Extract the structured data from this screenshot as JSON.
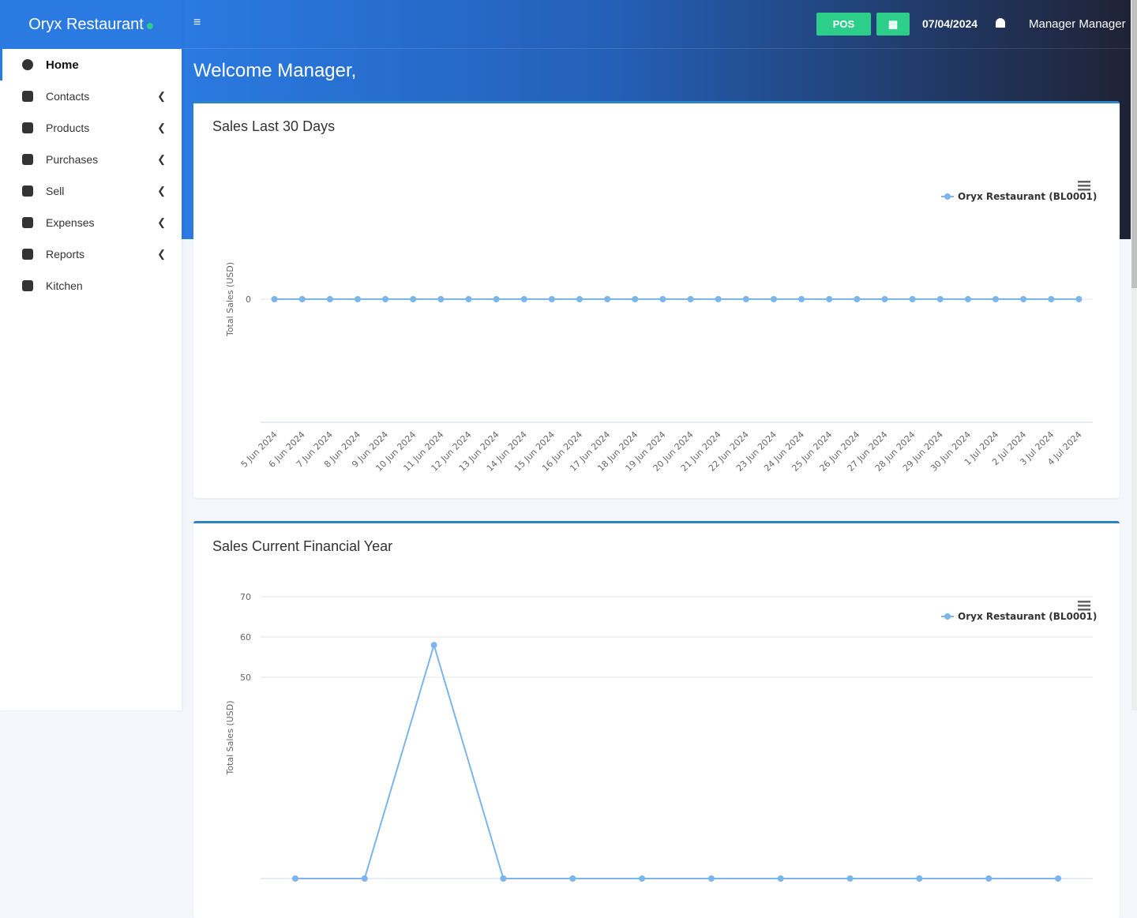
{
  "app": {
    "brand": "Oryx Restaurant"
  },
  "header": {
    "pos": "POS",
    "date": "07/04/2024",
    "user": "Manager Manager"
  },
  "sidebar": {
    "items": [
      "Home",
      "Contacts",
      "Products",
      "Purchases",
      "Sell",
      "Expenses",
      "Reports",
      "Kitchen"
    ]
  },
  "welcome": "Welcome Manager,",
  "chart_data": [
    {
      "type": "line",
      "title": "Sales Last 30 Days",
      "y_label": "Total Sales (USD)",
      "categories": [
        "5 Jun 2024",
        "6 Jun 2024",
        "7 Jun 2024",
        "8 Jun 2024",
        "9 Jun 2024",
        "10 Jun 2024",
        "11 Jun 2024",
        "12 Jun 2024",
        "13 Jun 2024",
        "14 Jun 2024",
        "15 Jun 2024",
        "16 Jun 2024",
        "17 Jun 2024",
        "18 Jun 2024",
        "19 Jun 2024",
        "20 Jun 2024",
        "21 Jun 2024",
        "22 Jun 2024",
        "23 Jun 2024",
        "24 Jun 2024",
        "25 Jun 2024",
        "26 Jun 2024",
        "27 Jun 2024",
        "28 Jun 2024",
        "29 Jun 2024",
        "30 Jun 2024",
        "1 Jul 2024",
        "2 Jul 2024",
        "3 Jul 2024",
        "4 Jul 2024"
      ],
      "series": [
        {
          "name": "Oryx Restaurant (BL0001)",
          "color": "#7cb5ec",
          "values": [
            0,
            0,
            0,
            0,
            0,
            0,
            0,
            0,
            0,
            0,
            0,
            0,
            0,
            0,
            0,
            0,
            0,
            0,
            0,
            0,
            0,
            0,
            0,
            0,
            0,
            0,
            0,
            0,
            0,
            0
          ]
        }
      ],
      "ylim": [
        -1,
        1
      ],
      "yticks": [
        0
      ],
      "grid": true
    },
    {
      "type": "line",
      "title": "Sales Current Financial Year",
      "y_label": "Total Sales (USD)",
      "categories": [
        null,
        null,
        null,
        null,
        null,
        null,
        null,
        null,
        null,
        null,
        null,
        null
      ],
      "series": [
        {
          "name": "Oryx Restaurant (BL0001)",
          "color": "#7cb5ec",
          "values": [
            0,
            0,
            58,
            0,
            0,
            0,
            0,
            0,
            0,
            0,
            0,
            0
          ]
        }
      ],
      "ylim": [
        0,
        70
      ],
      "yticks": [
        50,
        60,
        70
      ],
      "grid": true
    }
  ]
}
